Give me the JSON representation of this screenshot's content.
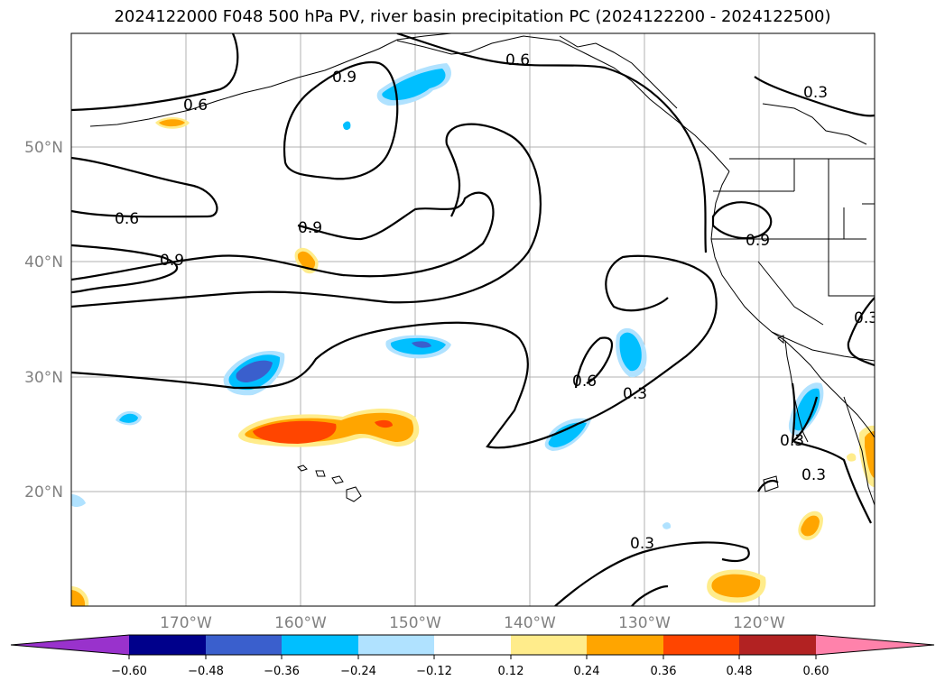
{
  "title": "2024122000 F048 500 hPa PV, river basin precipitation PC (2024122200 - 2024122500)",
  "lat_labels": [
    "50°N",
    "40°N",
    "30°N",
    "20°N"
  ],
  "lon_labels": [
    "170°W",
    "160°W",
    "150°W",
    "140°W",
    "130°W",
    "120°W"
  ],
  "contour_labels": [
    "0.6",
    "0.9",
    "0.6",
    "0.3",
    "0.6",
    "0.9",
    "0.9",
    "0.9",
    "0.3",
    "0.6",
    "0.3",
    "0.3",
    "0.3",
    "0.3"
  ],
  "colorbar": {
    "ticks": [
      "−0.60",
      "−0.48",
      "−0.36",
      "−0.24",
      "−0.12",
      "0.12",
      "0.24",
      "0.36",
      "0.48",
      "0.60"
    ],
    "colors": [
      "#9932cc",
      "#00008b",
      "#3a5fcd",
      "#00bfff",
      "#b0e2ff",
      "#ffffff",
      "#ffec8b",
      "#ffa500",
      "#ff4500",
      "#b22222",
      "#ff82ab"
    ]
  }
}
